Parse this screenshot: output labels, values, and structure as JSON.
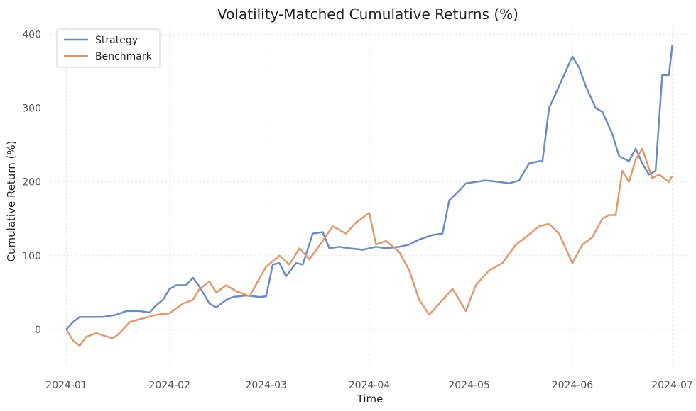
{
  "chart_data": {
    "type": "line",
    "title": "Volatility-Matched Cumulative Returns (%)",
    "xlabel": "Time",
    "ylabel": "Cumulative Return (%)",
    "xlim": [
      "2023-12-27",
      "2024-07-06"
    ],
    "ylim": [
      -50,
      410
    ],
    "x_ticks": [
      "2024-01-01",
      "2024-02-01",
      "2024-03-01",
      "2024-04-01",
      "2024-05-01",
      "2024-06-01",
      "2024-07-01"
    ],
    "x_tick_labels": [
      "2024-01",
      "2024-02",
      "2024-03",
      "2024-04",
      "2024-05",
      "2024-06",
      "2024-07"
    ],
    "y_ticks": [
      0,
      100,
      200,
      300,
      400
    ],
    "grid": true,
    "legend_position": "top-left",
    "series": [
      {
        "name": "Strategy",
        "color": "#6b8cbf",
        "x": [
          "2024-01-01",
          "2024-01-03",
          "2024-01-05",
          "2024-01-08",
          "2024-01-12",
          "2024-01-16",
          "2024-01-19",
          "2024-01-23",
          "2024-01-26",
          "2024-01-28",
          "2024-01-30",
          "2024-02-01",
          "2024-02-03",
          "2024-02-06",
          "2024-02-08",
          "2024-02-10",
          "2024-02-13",
          "2024-02-15",
          "2024-02-18",
          "2024-02-20",
          "2024-02-24",
          "2024-02-28",
          "2024-03-01",
          "2024-03-03",
          "2024-03-05",
          "2024-03-07",
          "2024-03-10",
          "2024-03-12",
          "2024-03-15",
          "2024-03-18",
          "2024-03-20",
          "2024-03-23",
          "2024-03-26",
          "2024-03-30",
          "2024-04-03",
          "2024-04-06",
          "2024-04-10",
          "2024-04-13",
          "2024-04-16",
          "2024-04-20",
          "2024-04-23",
          "2024-04-25",
          "2024-04-28",
          "2024-04-30",
          "2024-05-03",
          "2024-05-06",
          "2024-05-10",
          "2024-05-13",
          "2024-05-16",
          "2024-05-19",
          "2024-05-22",
          "2024-05-23",
          "2024-05-25",
          "2024-05-28",
          "2024-05-30",
          "2024-06-01",
          "2024-06-03",
          "2024-06-05",
          "2024-06-08",
          "2024-06-10",
          "2024-06-13",
          "2024-06-15",
          "2024-06-18",
          "2024-06-20",
          "2024-06-22",
          "2024-06-24",
          "2024-06-26",
          "2024-06-28",
          "2024-06-30",
          "2024-07-01"
        ],
        "values": [
          0,
          10,
          17,
          17,
          17,
          20,
          25,
          25,
          23,
          33,
          40,
          55,
          60,
          60,
          70,
          58,
          35,
          30,
          40,
          44,
          46,
          44,
          45,
          88,
          90,
          72,
          90,
          88,
          130,
          132,
          110,
          112,
          110,
          108,
          112,
          110,
          112,
          115,
          122,
          128,
          130,
          175,
          188,
          198,
          200,
          202,
          200,
          198,
          202,
          225,
          228,
          228,
          300,
          330,
          350,
          370,
          355,
          330,
          300,
          295,
          265,
          235,
          228,
          245,
          225,
          210,
          215,
          345,
          345,
          385
        ]
      },
      {
        "name": "Benchmark",
        "color": "#e0996e",
        "x": [
          "2024-01-01",
          "2024-01-03",
          "2024-01-05",
          "2024-01-07",
          "2024-01-10",
          "2024-01-12",
          "2024-01-15",
          "2024-01-17",
          "2024-01-20",
          "2024-01-24",
          "2024-01-28",
          "2024-02-01",
          "2024-02-05",
          "2024-02-08",
          "2024-02-10",
          "2024-02-13",
          "2024-02-15",
          "2024-02-18",
          "2024-02-21",
          "2024-02-25",
          "2024-03-01",
          "2024-03-05",
          "2024-03-08",
          "2024-03-11",
          "2024-03-14",
          "2024-03-18",
          "2024-03-21",
          "2024-03-25",
          "2024-03-28",
          "2024-04-01",
          "2024-04-03",
          "2024-04-06",
          "2024-04-10",
          "2024-04-13",
          "2024-04-16",
          "2024-04-19",
          "2024-04-22",
          "2024-04-26",
          "2024-04-30",
          "2024-05-03",
          "2024-05-07",
          "2024-05-11",
          "2024-05-15",
          "2024-05-18",
          "2024-05-22",
          "2024-05-25",
          "2024-05-28",
          "2024-06-01",
          "2024-06-04",
          "2024-06-07",
          "2024-06-10",
          "2024-06-12",
          "2024-06-14",
          "2024-06-16",
          "2024-06-18",
          "2024-06-20",
          "2024-06-22",
          "2024-06-25",
          "2024-06-27",
          "2024-06-30",
          "2024-07-01"
        ],
        "values": [
          0,
          -15,
          -22,
          -10,
          -5,
          -8,
          -12,
          -5,
          10,
          15,
          20,
          22,
          35,
          40,
          55,
          65,
          50,
          60,
          52,
          45,
          85,
          100,
          88,
          110,
          95,
          120,
          140,
          130,
          145,
          158,
          115,
          120,
          105,
          80,
          40,
          20,
          35,
          55,
          25,
          60,
          80,
          90,
          115,
          125,
          140,
          143,
          130,
          90,
          115,
          125,
          150,
          155,
          155,
          215,
          200,
          230,
          245,
          205,
          210,
          200,
          208
        ]
      }
    ]
  }
}
